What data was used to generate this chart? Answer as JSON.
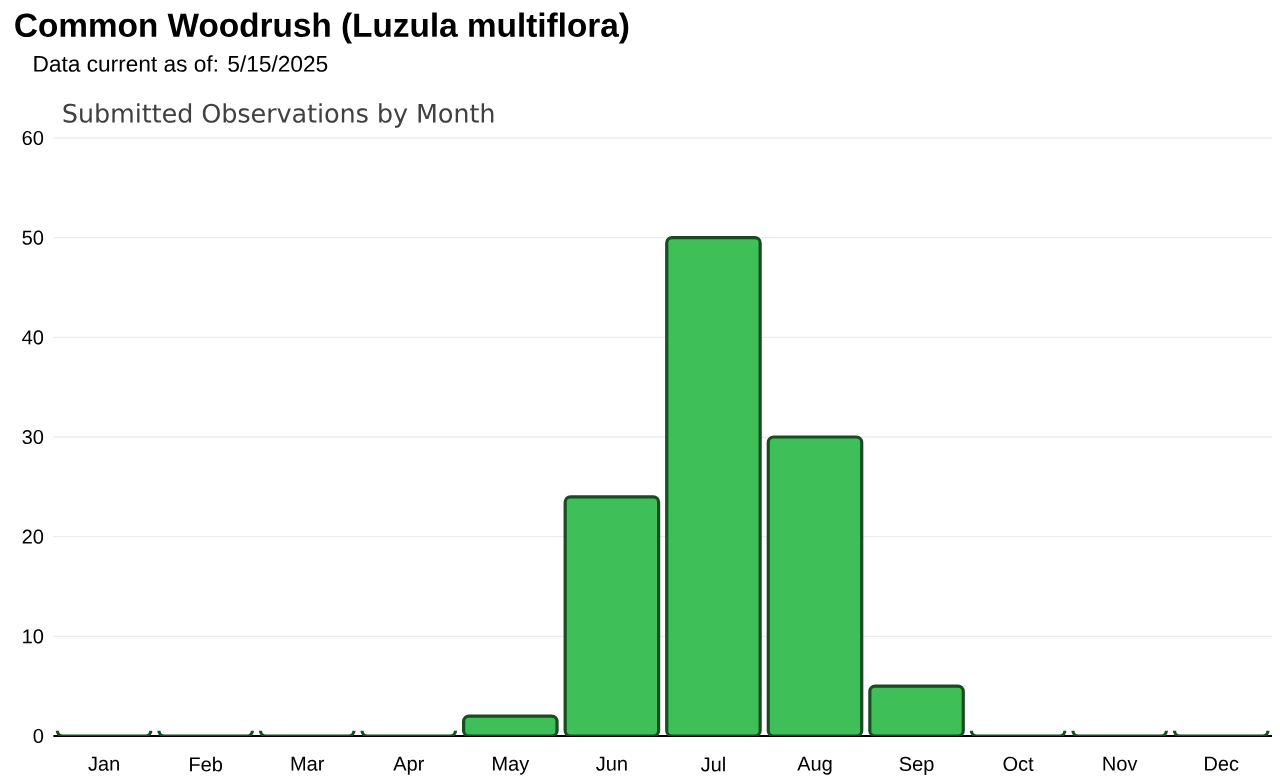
{
  "chart_data": {
    "type": "bar",
    "title": "Common Woodrush   (Luzula multiflora)",
    "subtitle": "Data current as of: 5/15/2025",
    "annotations": [
      "Submitted Observations by Month"
    ],
    "categories": [
      "Jan",
      "Feb",
      "Mar",
      "Apr",
      "May",
      "Jun",
      "Jul",
      "Aug",
      "Sep",
      "Oct",
      "Nov",
      "Dec"
    ],
    "values": [
      0,
      0,
      0,
      0,
      2,
      24,
      50,
      30,
      5,
      0,
      0,
      0
    ],
    "color": "#3fbf58",
    "ylim": [
      0,
      60
    ],
    "yticks": [
      0,
      10,
      20,
      30,
      40,
      50,
      60
    ],
    "grid": "y"
  }
}
